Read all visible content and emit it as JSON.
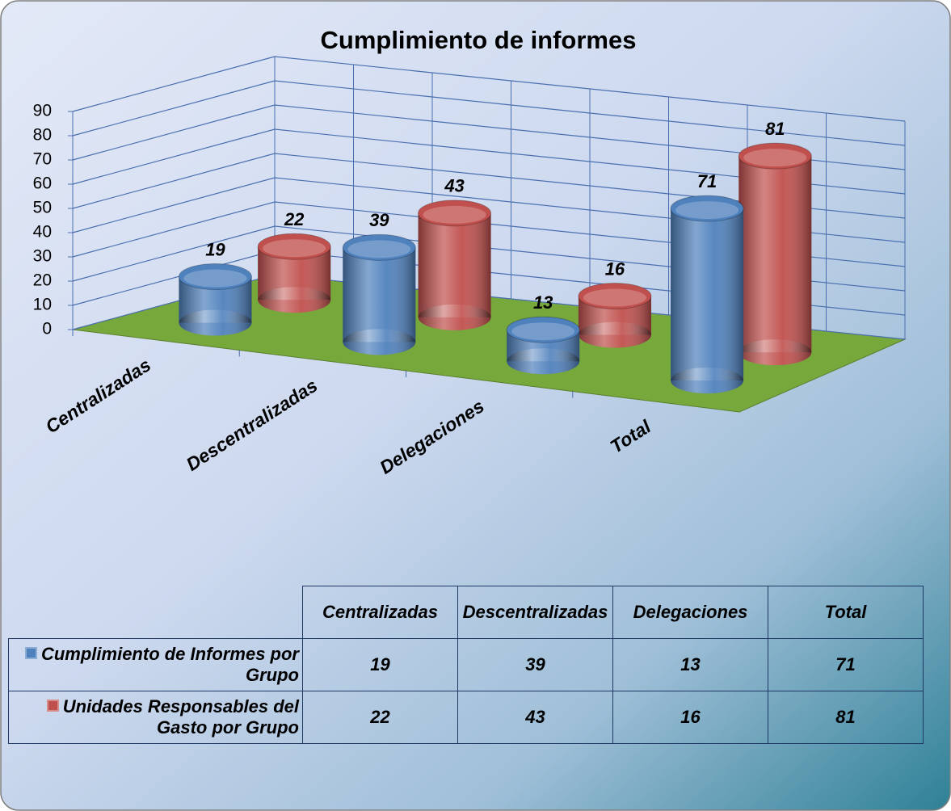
{
  "chart_data": {
    "type": "bar3d",
    "title": "Cumplimiento de informes",
    "categories": [
      "Centralizadas",
      "Descentralizadas",
      "Delegaciones",
      "Total"
    ],
    "series": [
      {
        "name": "Cumplimiento de Informes por Grupo",
        "color": "#4f81bd",
        "values": [
          19,
          39,
          13,
          71
        ]
      },
      {
        "name": "Unidades Responsables del Gasto por Grupo",
        "color": "#c0504d",
        "values": [
          22,
          43,
          16,
          81
        ]
      }
    ],
    "ylim": [
      0,
      90
    ],
    "yticks": [
      0,
      10,
      20,
      30,
      40,
      50,
      60,
      70,
      80,
      90
    ],
    "grid": true,
    "floor_color": "#77a83c",
    "data_table": true
  }
}
